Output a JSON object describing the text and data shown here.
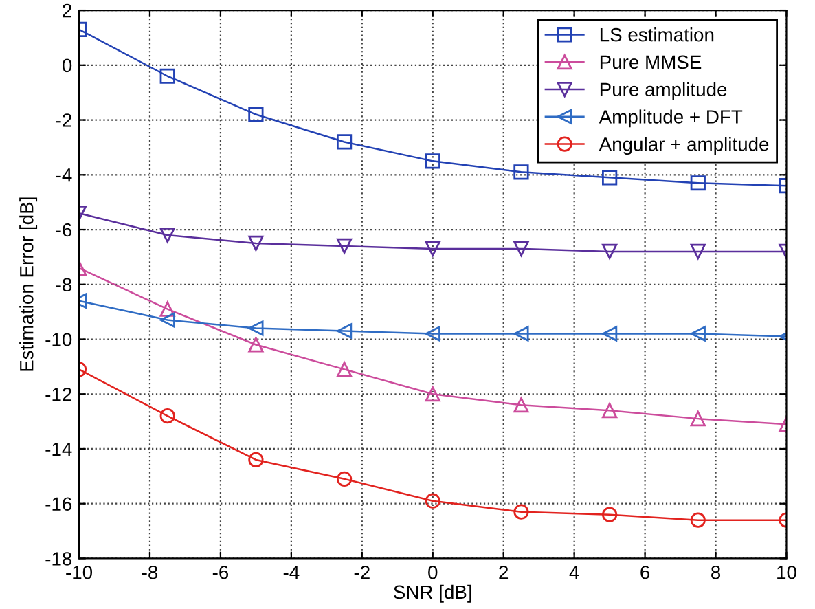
{
  "chart_data": {
    "type": "line",
    "xlabel": "SNR [dB]",
    "ylabel": "Estimation Error [dB]",
    "x": [
      -10,
      -7.5,
      -5,
      -2.5,
      0,
      2.5,
      5,
      7.5,
      10
    ],
    "series": [
      {
        "name": "LS estimation",
        "color": "#2342b4",
        "marker": "square",
        "values": [
          1.3,
          -0.4,
          -1.8,
          -2.8,
          -3.5,
          -3.9,
          -4.1,
          -4.3,
          -4.4
        ]
      },
      {
        "name": "Pure MMSE",
        "color": "#cc4c9c",
        "marker": "triangle",
        "values": [
          -7.4,
          -8.9,
          -10.2,
          -11.1,
          -12.0,
          -12.4,
          -12.6,
          -12.9,
          -13.1
        ]
      },
      {
        "name": "Pure amplitude",
        "color": "#5a2f9c",
        "marker": "triangle_down",
        "values": [
          -5.4,
          -6.2,
          -6.5,
          -6.6,
          -6.7,
          -6.7,
          -6.8,
          -6.8,
          -6.8
        ]
      },
      {
        "name": "Amplitude + DFT",
        "color": "#2f6cc4",
        "marker": "triangle_left",
        "values": [
          -8.6,
          -9.3,
          -9.6,
          -9.7,
          -9.8,
          -9.8,
          -9.8,
          -9.8,
          -9.9
        ]
      },
      {
        "name": "Angular + amplitude",
        "color": "#e2231f",
        "marker": "circle",
        "values": [
          -11.1,
          -12.8,
          -14.4,
          -15.1,
          -15.9,
          -16.3,
          -16.4,
          -16.6,
          -16.6
        ]
      }
    ],
    "xlim": [
      -10,
      10
    ],
    "xticks": [
      -10,
      -8,
      -6,
      -4,
      -2,
      0,
      2,
      4,
      6,
      8,
      10
    ],
    "ylim": [
      -18,
      2
    ],
    "yticks": [
      -18,
      -16,
      -14,
      -12,
      -10,
      -8,
      -6,
      -4,
      -2,
      0,
      2
    ],
    "grid": true,
    "legend": "top right",
    "line_style": "solid"
  }
}
